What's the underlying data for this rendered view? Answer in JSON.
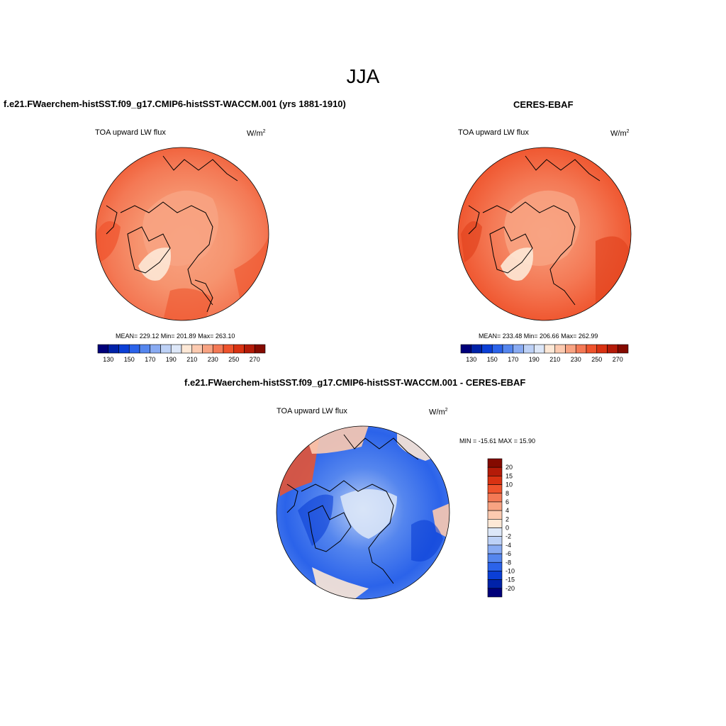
{
  "title": "JJA",
  "panels": [
    {
      "title": "f.e21.FWaerchem-histSST.f09_g17.CMIP6-histSST-WACCM.001 (yrs 1881-1910)",
      "left_label": "TOA upward LW flux",
      "units": "W/m",
      "units_exp": "2",
      "stats": "MEAN= 229.12  Min= 201.89  Max= 263.10"
    },
    {
      "title": "CERES-EBAF",
      "left_label": "TOA upward LW flux",
      "units": "W/m",
      "units_exp": "2",
      "stats": "MEAN= 233.48  Min= 206.66  Max= 262.99"
    },
    {
      "title": "f.e21.FWaerchem-histSST.f09_g17.CMIP6-histSST-WACCM.001 - CERES-EBAF",
      "left_label": "TOA upward LW flux",
      "units": "W/m",
      "units_exp": "2",
      "stats": "MIN = -15.61 MAX =  15.90"
    }
  ],
  "colorbar_abs": {
    "colors": [
      "#00007a",
      "#0022a8",
      "#0b3fd6",
      "#2b63ea",
      "#5586ee",
      "#89abf2",
      "#bdd1f6",
      "#dde7f8",
      "#fde8d6",
      "#fccab0",
      "#f8a382",
      "#f47955",
      "#ef532c",
      "#d93212",
      "#b41b08",
      "#840a00"
    ],
    "labels": [
      "130",
      "150",
      "170",
      "190",
      "210",
      "230",
      "250",
      "270"
    ]
  },
  "colorbar_diff": {
    "colors": [
      "#840a00",
      "#b41b08",
      "#d93212",
      "#ef532c",
      "#f47955",
      "#f8a382",
      "#fccab0",
      "#fde8d6",
      "#dde7f8",
      "#bdd1f6",
      "#89abf2",
      "#5586ee",
      "#2b63ea",
      "#0b3fd6",
      "#0022a8",
      "#00007a"
    ],
    "labels": [
      "20",
      "15",
      "10",
      "8",
      "6",
      "4",
      "2",
      "0",
      "-2",
      "-4",
      "-6",
      "-8",
      "-10",
      "-15",
      "-20"
    ]
  }
}
